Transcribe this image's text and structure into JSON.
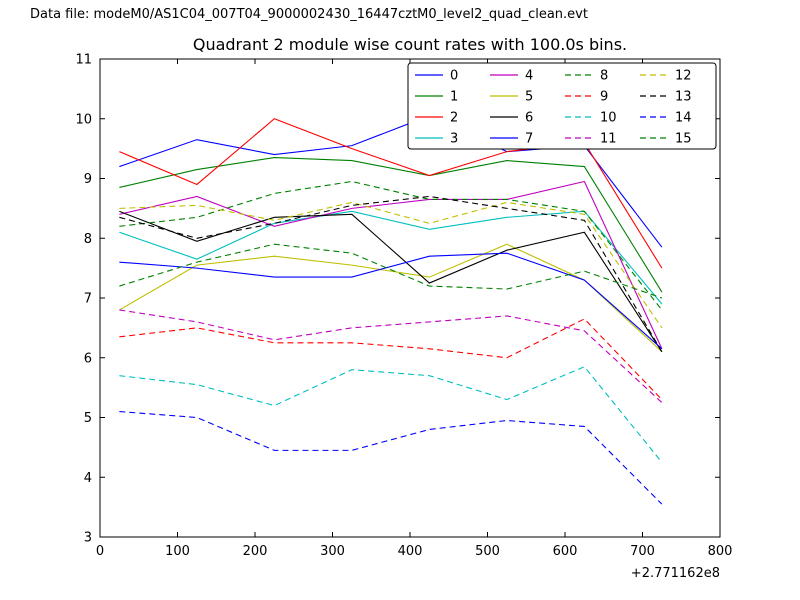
{
  "header": {
    "data_file_label": "Data file: modeM0/AS1C04_007T04_9000002430_16447cztM0_level2_quad_clean.evt"
  },
  "chart_data": {
    "type": "line",
    "title": "Quadrant 2 module wise count rates with 100.0s bins.",
    "xlabel": "",
    "ylabel": "",
    "xlim": [
      0,
      800
    ],
    "ylim": [
      3,
      11
    ],
    "x_offset_label": "+2.771162e8",
    "x_ticks": [
      0,
      100,
      200,
      300,
      400,
      500,
      600,
      700,
      800
    ],
    "y_ticks": [
      3,
      4,
      5,
      6,
      7,
      8,
      9,
      10,
      11
    ],
    "grid": false,
    "legend_position": "upper center",
    "legend_columns": 4,
    "x": [
      25,
      125,
      225,
      325,
      425,
      525,
      625,
      725
    ],
    "series": [
      {
        "name": "0",
        "color": "#0000ff",
        "style": "solid",
        "values": [
          9.2,
          9.65,
          9.4,
          9.55,
          10.05,
          9.45,
          9.55,
          7.85
        ]
      },
      {
        "name": "1",
        "color": "#008000",
        "style": "solid",
        "values": [
          8.85,
          9.15,
          9.35,
          9.3,
          9.05,
          9.3,
          9.2,
          7.1
        ]
      },
      {
        "name": "2",
        "color": "#ff0000",
        "style": "solid",
        "values": [
          9.45,
          8.9,
          10.0,
          9.5,
          9.05,
          9.45,
          9.6,
          7.5
        ]
      },
      {
        "name": "3",
        "color": "#00bfbf",
        "style": "solid",
        "values": [
          8.1,
          7.65,
          8.25,
          8.45,
          8.15,
          8.35,
          8.45,
          6.9
        ]
      },
      {
        "name": "4",
        "color": "#bf00bf",
        "style": "solid",
        "values": [
          8.4,
          8.7,
          8.2,
          8.5,
          8.65,
          8.65,
          8.95,
          6.15
        ]
      },
      {
        "name": "5",
        "color": "#bfbf00",
        "style": "solid",
        "values": [
          6.8,
          7.55,
          7.7,
          7.55,
          7.35,
          7.9,
          7.3,
          6.1
        ]
      },
      {
        "name": "6",
        "color": "#000000",
        "style": "solid",
        "values": [
          8.45,
          7.95,
          8.35,
          8.4,
          7.25,
          7.8,
          8.1,
          6.1
        ]
      },
      {
        "name": "7",
        "color": "#0000ff",
        "style": "solid",
        "values": [
          7.6,
          7.5,
          7.35,
          7.35,
          7.7,
          7.75,
          7.3,
          6.15
        ]
      },
      {
        "name": "8",
        "color": "#008000",
        "style": "dashed",
        "values": [
          8.2,
          8.35,
          8.75,
          8.95,
          8.65,
          8.65,
          8.45,
          6.8
        ]
      },
      {
        "name": "9",
        "color": "#ff0000",
        "style": "dashed",
        "values": [
          6.35,
          6.5,
          6.25,
          6.25,
          6.15,
          6.0,
          6.65,
          5.3
        ]
      },
      {
        "name": "10",
        "color": "#00bfbf",
        "style": "dashed",
        "values": [
          5.7,
          5.55,
          5.2,
          5.8,
          5.7,
          5.3,
          5.85,
          4.25
        ]
      },
      {
        "name": "11",
        "color": "#bf00bf",
        "style": "dashed",
        "values": [
          6.8,
          6.6,
          6.3,
          6.5,
          6.6,
          6.7,
          6.45,
          5.25
        ]
      },
      {
        "name": "12",
        "color": "#bfbf00",
        "style": "dashed",
        "values": [
          8.5,
          8.55,
          8.3,
          8.6,
          8.25,
          8.6,
          8.4,
          6.5
        ]
      },
      {
        "name": "13",
        "color": "#000000",
        "style": "dashed",
        "values": [
          8.35,
          8.0,
          8.25,
          8.55,
          8.7,
          8.5,
          8.3,
          6.1
        ]
      },
      {
        "name": "14",
        "color": "#0000ff",
        "style": "dashed",
        "values": [
          5.1,
          5.0,
          4.45,
          4.45,
          4.8,
          4.95,
          4.85,
          3.55
        ]
      },
      {
        "name": "15",
        "color": "#008000",
        "style": "dashed",
        "values": [
          7.2,
          7.6,
          7.9,
          7.75,
          7.2,
          7.15,
          7.45,
          7.0
        ]
      }
    ]
  }
}
